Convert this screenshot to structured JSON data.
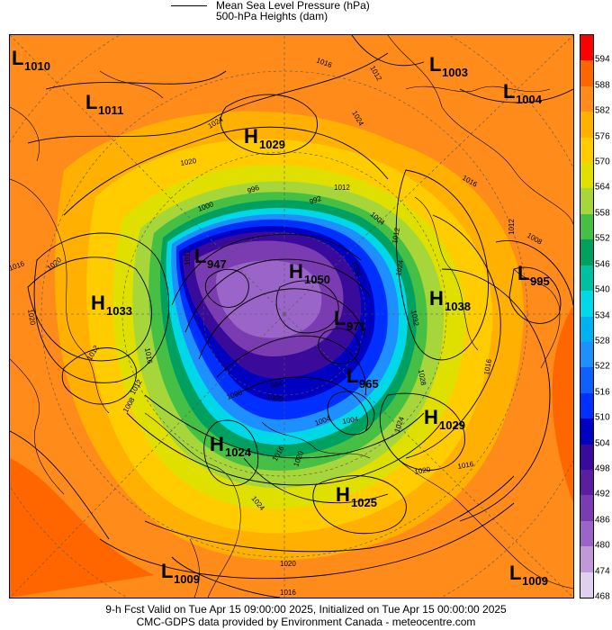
{
  "legend": {
    "line1": "Mean Sea Level Pressure (hPa)",
    "line2": "500-hPa Heights (dam)"
  },
  "colorbar": {
    "labels": [
      "594",
      "588",
      "582",
      "576",
      "570",
      "564",
      "558",
      "552",
      "546",
      "540",
      "534",
      "528",
      "522",
      "516",
      "510",
      "504",
      "498",
      "492",
      "486",
      "480",
      "474",
      "468"
    ],
    "colors": [
      "#ff0000",
      "#ff6600",
      "#ff8c1a",
      "#ffb000",
      "#ffcc00",
      "#e0e000",
      "#a6d63a",
      "#45c045",
      "#00a060",
      "#00c0a0",
      "#00d8e8",
      "#00b0f0",
      "#1e8fff",
      "#1060ff",
      "#0030ff",
      "#0000c0",
      "#3a0a9a",
      "#5a1ea0",
      "#7a3cb0",
      "#9a64c8",
      "#c09ad8",
      "#e0d0f0"
    ]
  },
  "centers": [
    {
      "type": "L",
      "value": "1010"
    },
    {
      "type": "L",
      "value": "1011"
    },
    {
      "type": "H",
      "value": "1029"
    },
    {
      "type": "L",
      "value": "1003"
    },
    {
      "type": "L",
      "value": "1004"
    },
    {
      "type": "L",
      "value": "947"
    },
    {
      "type": "H",
      "value": "1050"
    },
    {
      "type": "H",
      "value": "1033"
    },
    {
      "type": "H",
      "value": "1038"
    },
    {
      "type": "L",
      "value": "995"
    },
    {
      "type": "L",
      "value": "971"
    },
    {
      "type": "L",
      "value": "965"
    },
    {
      "type": "H",
      "value": "1029"
    },
    {
      "type": "H",
      "value": "1024"
    },
    {
      "type": "H",
      "value": "1025"
    },
    {
      "type": "L",
      "value": "1009"
    },
    {
      "type": "L",
      "value": "1009"
    }
  ],
  "isobar_labels": [
    "1016",
    "1012",
    "1020",
    "1024",
    "1016",
    "1020",
    "1012",
    "1016",
    "1012",
    "1020",
    "1008",
    "1016",
    "1012",
    "1016",
    "1020",
    "1024",
    "1016",
    "1012",
    "1004",
    "992",
    "1000",
    "996",
    "1004",
    "1004",
    "984",
    "1000",
    "1008",
    "1012",
    "1024",
    "1032",
    "1028",
    "1024",
    "1016",
    "1020",
    "1024",
    "1012",
    "1008",
    "1020",
    "1016",
    "1004"
  ],
  "footer": {
    "line1": "9-h Fcst Valid on Tue Apr 15 09:00:00 2025, Initialized on Tue Apr 15 00:00:00 2025",
    "line2": "CMC-GDPS data provided by Environment Canada - meteocentre.com"
  }
}
